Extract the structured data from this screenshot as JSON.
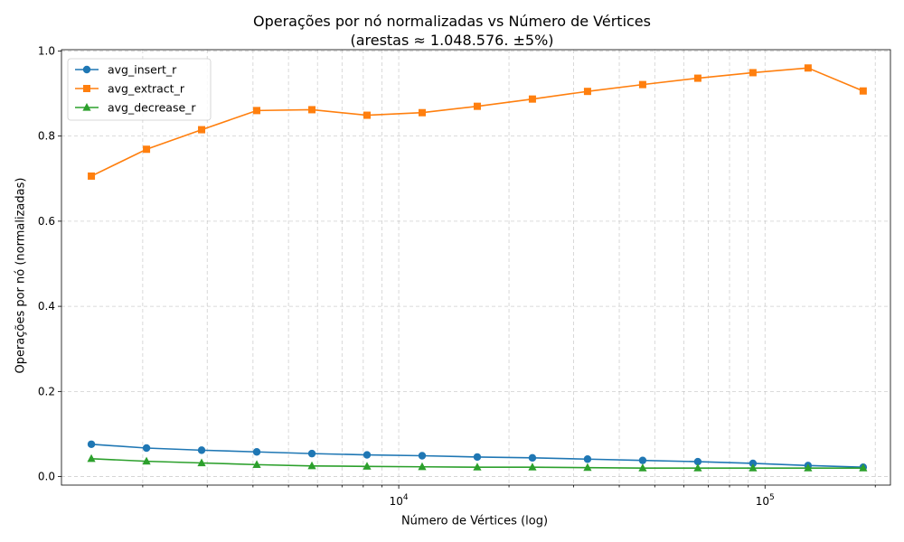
{
  "chart_data": {
    "type": "line",
    "title": "Operações por nó normalizadas vs Número de Vértices",
    "subtitle": "(arestas ≈ 1.048.576. ±5%)",
    "xlabel": "Número de Vértices (log)",
    "ylabel": "Operações por nó (normalizadas)",
    "xscale": "log",
    "xlim": [
      1200,
      220000
    ],
    "ylim": [
      -0.02,
      1.003
    ],
    "grid": true,
    "legend_position": "top-left",
    "yticks": [
      "0.0",
      "0.2",
      "0.4",
      "0.6",
      "0.8",
      "1.0"
    ],
    "xticks": [
      {
        "value": 10000,
        "base": "10",
        "exp": "4"
      },
      {
        "value": 100000,
        "base": "10",
        "exp": "5"
      }
    ],
    "x": [
      1448,
      2048,
      2896,
      4096,
      5793,
      8192,
      11585,
      16384,
      23170,
      32768,
      46341,
      65536,
      92682,
      131072,
      185364
    ],
    "series": [
      {
        "name": "avg_insert_r",
        "color": "#1f77b4",
        "marker": "circle",
        "values": [
          0.076,
          0.067,
          0.062,
          0.058,
          0.054,
          0.051,
          0.049,
          0.046,
          0.044,
          0.041,
          0.038,
          0.035,
          0.031,
          0.026,
          0.022
        ]
      },
      {
        "name": "avg_extract_r",
        "color": "#ff7f0e",
        "marker": "square",
        "values": [
          0.706,
          0.769,
          0.815,
          0.86,
          0.862,
          0.849,
          0.855,
          0.87,
          0.887,
          0.905,
          0.921,
          0.936,
          0.949,
          0.96,
          0.906
        ]
      },
      {
        "name": "avg_decrease_r",
        "color": "#2ca02c",
        "marker": "triangle",
        "values": [
          0.042,
          0.036,
          0.032,
          0.028,
          0.025,
          0.024,
          0.023,
          0.022,
          0.022,
          0.021,
          0.02,
          0.02,
          0.02,
          0.02,
          0.02
        ]
      }
    ]
  }
}
